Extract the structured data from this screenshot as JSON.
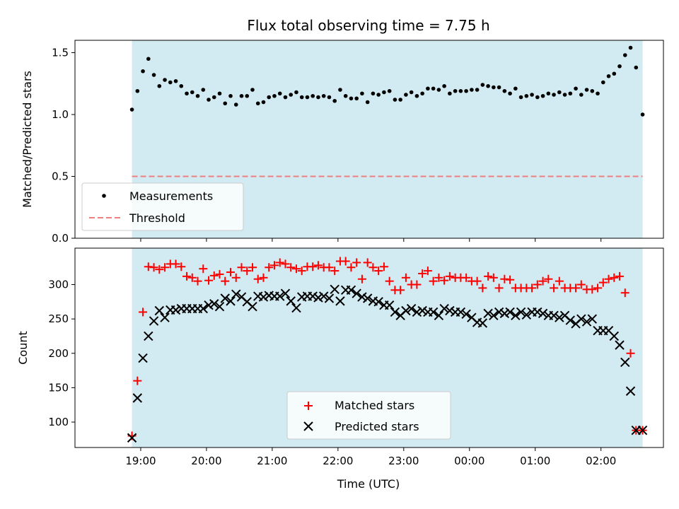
{
  "chart_data": [
    {
      "type": "scatter",
      "title": "Flux total observing time = 7.75 h",
      "xlabel": "",
      "ylabel": "Matched/Predicted stars",
      "ylim": [
        0.0,
        1.6
      ],
      "yticks": [
        "0.0",
        "0.5",
        "1.0",
        "1.5"
      ],
      "xtick_labels": [],
      "shaded_region": {
        "from": "18:52",
        "to": "02:38",
        "color": "#add8e6"
      },
      "threshold": {
        "name": "Threshold",
        "value": 0.5,
        "color": "#f08080",
        "style": "dashed"
      },
      "legend_position": "lower-left",
      "series": [
        {
          "name": "Measurements",
          "color": "#000000",
          "marker": "dot",
          "x": [
            "18:52",
            "18:57",
            "19:02",
            "19:07",
            "19:12",
            "19:17",
            "19:22",
            "19:27",
            "19:32",
            "19:37",
            "19:42",
            "19:47",
            "19:52",
            "19:57",
            "20:02",
            "20:07",
            "20:12",
            "20:17",
            "20:22",
            "20:27",
            "20:32",
            "20:37",
            "20:42",
            "20:47",
            "20:52",
            "20:57",
            "21:02",
            "21:07",
            "21:12",
            "21:17",
            "21:22",
            "21:27",
            "21:32",
            "21:37",
            "21:42",
            "21:47",
            "21:52",
            "21:57",
            "22:02",
            "22:07",
            "22:12",
            "22:17",
            "22:22",
            "22:27",
            "22:32",
            "22:37",
            "22:42",
            "22:47",
            "22:52",
            "22:57",
            "23:02",
            "23:07",
            "23:12",
            "23:17",
            "23:22",
            "23:27",
            "23:32",
            "23:37",
            "23:42",
            "23:47",
            "23:52",
            "23:57",
            "00:02",
            "00:07",
            "00:12",
            "00:17",
            "00:22",
            "00:27",
            "00:32",
            "00:37",
            "00:42",
            "00:47",
            "00:52",
            "00:57",
            "01:02",
            "01:07",
            "01:12",
            "01:17",
            "01:22",
            "01:27",
            "01:32",
            "01:37",
            "01:42",
            "01:47",
            "01:52",
            "01:57",
            "02:02",
            "02:07",
            "02:12",
            "02:17",
            "02:22",
            "02:27",
            "02:32",
            "02:38"
          ],
          "y": [
            1.04,
            1.19,
            1.35,
            1.45,
            1.32,
            1.23,
            1.28,
            1.26,
            1.27,
            1.23,
            1.17,
            1.18,
            1.15,
            1.2,
            1.12,
            1.14,
            1.17,
            1.09,
            1.15,
            1.08,
            1.15,
            1.15,
            1.2,
            1.09,
            1.1,
            1.14,
            1.15,
            1.17,
            1.14,
            1.16,
            1.18,
            1.14,
            1.14,
            1.15,
            1.14,
            1.15,
            1.14,
            1.11,
            1.2,
            1.15,
            1.13,
            1.13,
            1.17,
            1.1,
            1.17,
            1.16,
            1.18,
            1.19,
            1.12,
            1.12,
            1.16,
            1.18,
            1.15,
            1.17,
            1.21,
            1.21,
            1.2,
            1.23,
            1.17,
            1.19,
            1.19,
            1.19,
            1.2,
            1.2,
            1.24,
            1.23,
            1.22,
            1.22,
            1.19,
            1.17,
            1.21,
            1.14,
            1.15,
            1.16,
            1.14,
            1.15,
            1.17,
            1.16,
            1.18,
            1.16,
            1.17,
            1.21,
            1.16,
            1.2,
            1.19,
            1.17,
            1.26,
            1.31,
            1.33,
            1.39,
            1.48,
            1.54,
            1.38,
            1.0
          ]
        }
      ]
    },
    {
      "type": "scatter",
      "title": "",
      "xlabel": "Time (UTC)",
      "ylabel": "Count",
      "ylim": [
        63,
        353
      ],
      "yticks": [
        "100",
        "150",
        "200",
        "250",
        "300"
      ],
      "xtick_labels": [
        "19:00",
        "20:00",
        "21:00",
        "22:00",
        "23:00",
        "00:00",
        "01:00",
        "02:00"
      ],
      "shaded_region": {
        "from": "18:52",
        "to": "02:38",
        "color": "#add8e6"
      },
      "legend_position": "lower-center",
      "series": [
        {
          "name": "Matched stars",
          "color": "#ff0000",
          "marker": "plus",
          "x": [
            "18:52",
            "18:57",
            "19:02",
            "19:07",
            "19:12",
            "19:17",
            "19:22",
            "19:27",
            "19:32",
            "19:37",
            "19:42",
            "19:47",
            "19:52",
            "19:57",
            "20:02",
            "20:07",
            "20:12",
            "20:17",
            "20:22",
            "20:27",
            "20:32",
            "20:37",
            "20:42",
            "20:47",
            "20:52",
            "20:57",
            "21:02",
            "21:07",
            "21:12",
            "21:17",
            "21:22",
            "21:27",
            "21:32",
            "21:37",
            "21:42",
            "21:47",
            "21:52",
            "21:57",
            "22:02",
            "22:07",
            "22:12",
            "22:17",
            "22:22",
            "22:27",
            "22:32",
            "22:37",
            "22:42",
            "22:47",
            "22:52",
            "22:57",
            "23:02",
            "23:07",
            "23:12",
            "23:17",
            "23:22",
            "23:27",
            "23:32",
            "23:37",
            "23:42",
            "23:47",
            "23:52",
            "23:57",
            "00:02",
            "00:07",
            "00:12",
            "00:17",
            "00:22",
            "00:27",
            "00:32",
            "00:37",
            "00:42",
            "00:47",
            "00:52",
            "00:57",
            "01:02",
            "01:07",
            "01:12",
            "01:17",
            "01:22",
            "01:27",
            "01:32",
            "01:37",
            "01:42",
            "01:47",
            "01:52",
            "01:57",
            "02:02",
            "02:07",
            "02:12",
            "02:17",
            "02:22",
            "02:27",
            "02:32",
            "02:38"
          ],
          "y": [
            80,
            160,
            260,
            326,
            325,
            322,
            325,
            330,
            330,
            326,
            312,
            310,
            305,
            323,
            306,
            313,
            315,
            305,
            318,
            310,
            325,
            320,
            325,
            308,
            310,
            325,
            328,
            332,
            330,
            325,
            323,
            320,
            326,
            326,
            328,
            325,
            325,
            320,
            334,
            334,
            325,
            332,
            308,
            332,
            325,
            320,
            326,
            305,
            292,
            292,
            310,
            300,
            300,
            316,
            320,
            305,
            310,
            306,
            312,
            310,
            310,
            310,
            305,
            305,
            295,
            312,
            310,
            295,
            308,
            307,
            295,
            295,
            295,
            295,
            300,
            305,
            308,
            295,
            305,
            295,
            295,
            295,
            300,
            293,
            293,
            295,
            303,
            308,
            310,
            312,
            288,
            200,
            88,
            88
          ]
        },
        {
          "name": "Predicted stars",
          "color": "#000000",
          "marker": "x",
          "x": [
            "18:52",
            "18:57",
            "19:02",
            "19:07",
            "19:12",
            "19:17",
            "19:22",
            "19:27",
            "19:32",
            "19:37",
            "19:42",
            "19:47",
            "19:52",
            "19:57",
            "20:02",
            "20:07",
            "20:12",
            "20:17",
            "20:22",
            "20:27",
            "20:32",
            "20:37",
            "20:42",
            "20:47",
            "20:52",
            "20:57",
            "21:02",
            "21:07",
            "21:12",
            "21:17",
            "21:22",
            "21:27",
            "21:32",
            "21:37",
            "21:42",
            "21:47",
            "21:52",
            "21:57",
            "22:02",
            "22:07",
            "22:12",
            "22:17",
            "22:22",
            "22:27",
            "22:32",
            "22:37",
            "22:42",
            "22:47",
            "22:52",
            "22:57",
            "23:02",
            "23:07",
            "23:12",
            "23:17",
            "23:22",
            "23:27",
            "23:32",
            "23:37",
            "23:42",
            "23:47",
            "23:52",
            "23:57",
            "00:02",
            "00:07",
            "00:12",
            "00:17",
            "00:22",
            "00:27",
            "00:32",
            "00:37",
            "00:42",
            "00:47",
            "00:52",
            "00:57",
            "01:02",
            "01:07",
            "01:12",
            "01:17",
            "01:22",
            "01:27",
            "01:32",
            "01:37",
            "01:42",
            "01:47",
            "01:52",
            "01:57",
            "02:02",
            "02:07",
            "02:12",
            "02:17",
            "02:22",
            "02:27",
            "02:32",
            "02:38"
          ],
          "y": [
            77,
            135,
            193,
            225,
            247,
            262,
            252,
            263,
            263,
            265,
            265,
            265,
            265,
            265,
            270,
            272,
            268,
            280,
            276,
            286,
            282,
            275,
            268,
            283,
            282,
            284,
            283,
            283,
            287,
            276,
            266,
            282,
            283,
            283,
            281,
            283,
            280,
            293,
            276,
            292,
            292,
            287,
            282,
            280,
            276,
            275,
            270,
            270,
            260,
            255,
            262,
            265,
            260,
            262,
            260,
            260,
            255,
            265,
            262,
            260,
            260,
            257,
            252,
            245,
            244,
            258,
            255,
            260,
            258,
            260,
            255,
            260,
            256,
            260,
            260,
            258,
            255,
            255,
            252,
            255,
            248,
            243,
            250,
            246,
            250,
            233,
            233,
            233,
            225,
            212,
            187,
            145,
            88,
            88
          ]
        }
      ]
    }
  ]
}
